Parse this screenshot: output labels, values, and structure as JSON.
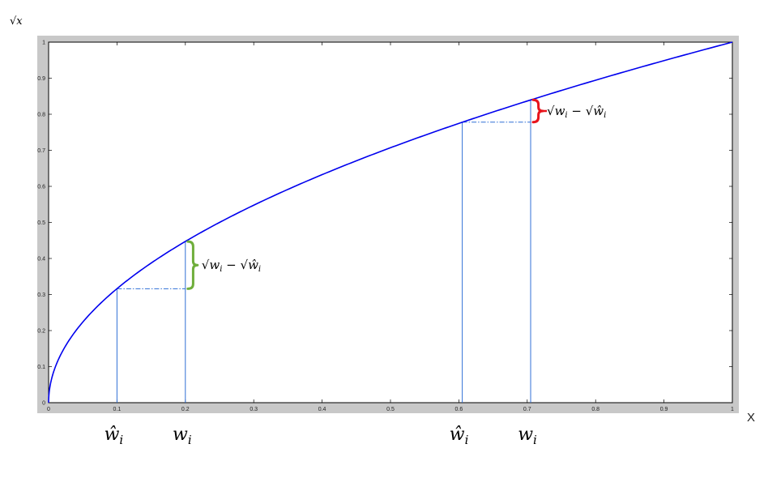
{
  "chart_data": {
    "type": "line",
    "title": "",
    "ylabel": "√x",
    "xlabel": "X",
    "xlim": [
      0,
      1
    ],
    "ylim": [
      0,
      1
    ],
    "grid": false,
    "x_ticks": [
      "0",
      "0.1",
      "0.2",
      "0.3",
      "0.4",
      "0.5",
      "0.6",
      "0.7",
      "0.8",
      "0.9",
      "1"
    ],
    "y_ticks": [
      "0",
      "0.1",
      "0.2",
      "0.3",
      "0.4",
      "0.5",
      "0.6",
      "0.7",
      "0.8",
      "0.9",
      "1"
    ],
    "series": [
      {
        "function": "sqrt",
        "color": "#0000ee",
        "domain": [
          0,
          1
        ]
      }
    ],
    "marked_points": [
      {
        "label_base": "ŵ",
        "label_sub": "i",
        "x": 0.1,
        "y": 0.316
      },
      {
        "label_base": "w",
        "label_sub": "i",
        "x": 0.2,
        "y": 0.447
      },
      {
        "label_base": "ŵ",
        "label_sub": "i",
        "x": 0.605,
        "y": 0.778
      },
      {
        "label_base": "w",
        "label_sub": "i",
        "x": 0.705,
        "y": 0.84
      }
    ],
    "braces": [
      {
        "x": 0.2,
        "y_low": 0.316,
        "y_high": 0.447,
        "color": "#6fae3b",
        "label": "√w_i − √ŵ_i"
      },
      {
        "x": 0.705,
        "y_low": 0.778,
        "y_high": 0.84,
        "color": "#e8141c",
        "label": "√w_i − √ŵ_i"
      }
    ],
    "brace_label": {
      "sqrt": "√",
      "a_base": "w",
      "a_sub": "i",
      "minus": "−",
      "b_base": "ŵ",
      "b_sub": "i"
    },
    "frame_color": "#c8c8c8",
    "guide_color": "#2f6fd6"
  }
}
